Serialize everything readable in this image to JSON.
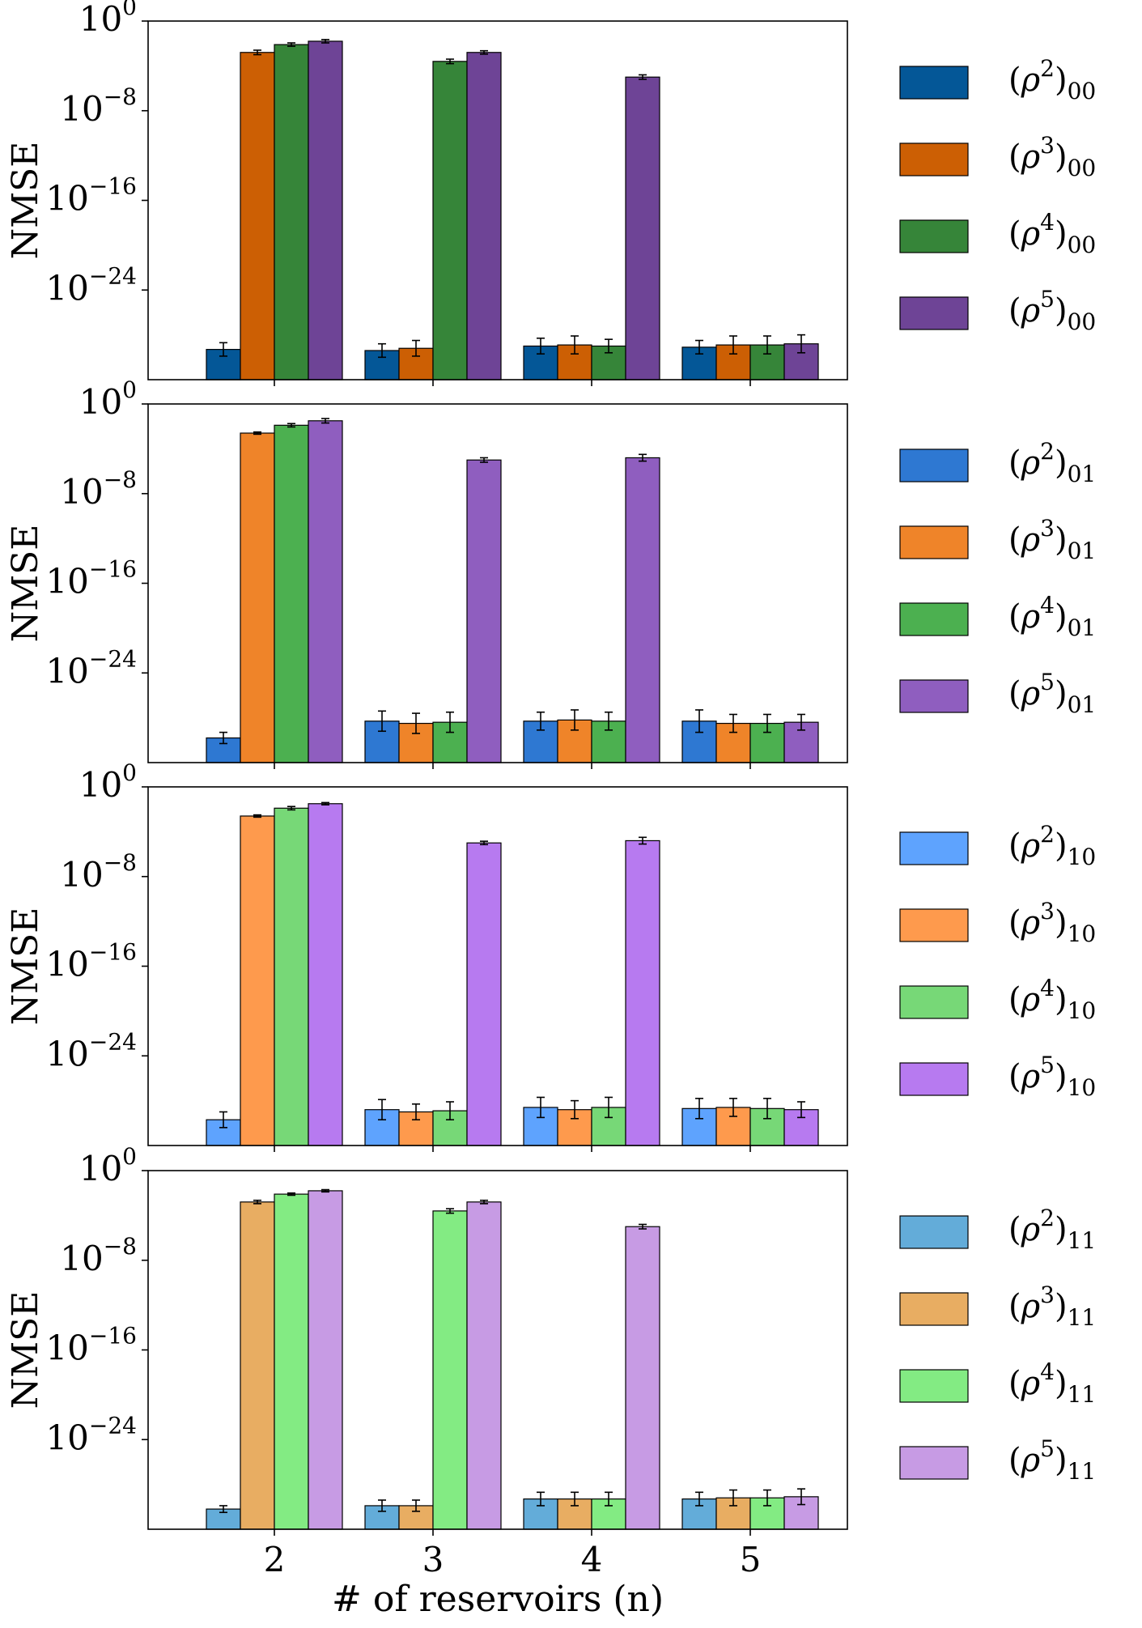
{
  "chart_data": {
    "type": "bar",
    "xlabel": "# of reservoirs (n)",
    "ylabel": "NMSE",
    "yscale": "log",
    "ylim_exponents": [
      -32,
      0
    ],
    "ytick_labels": [
      {
        "base": "10",
        "exp": "0",
        "value_exp": 0
      },
      {
        "base": "10",
        "exp": "−8",
        "value_exp": -8
      },
      {
        "base": "10",
        "exp": "−16",
        "value_exp": -16
      },
      {
        "base": "10",
        "exp": "−24",
        "value_exp": -24
      }
    ],
    "categories": [
      "2",
      "3",
      "4",
      "5"
    ],
    "panels": [
      {
        "name": "panel-00",
        "series": [
          {
            "name": "(ρ²)₀₀",
            "base": "ρ",
            "power": "2",
            "index": "00",
            "color": "#045797",
            "log10_values": [
              -29.3,
              -29.4,
              -29.0,
              -29.1
            ],
            "log10_err": [
              0.6,
              0.6,
              0.7,
              0.6
            ]
          },
          {
            "name": "(ρ³)₀₀",
            "base": "ρ",
            "power": "3",
            "index": "00",
            "color": "#cc5f04",
            "log10_values": [
              -2.8,
              -29.2,
              -28.9,
              -28.9
            ],
            "log10_err": [
              0.2,
              0.7,
              0.8,
              0.8
            ]
          },
          {
            "name": "(ρ⁴)₀₀",
            "base": "ρ",
            "power": "4",
            "index": "00",
            "color": "#368539",
            "log10_values": [
              -2.1,
              -3.6,
              -29.0,
              -28.9
            ],
            "log10_err": [
              0.15,
              0.2,
              0.6,
              0.8
            ]
          },
          {
            "name": "(ρ⁵)₀₀",
            "base": "ρ",
            "power": "5",
            "index": "00",
            "color": "#6e4496",
            "log10_values": [
              -1.8,
              -2.8,
              -5.0,
              -28.8
            ],
            "log10_err": [
              0.15,
              0.15,
              0.2,
              0.8
            ]
          }
        ]
      },
      {
        "name": "panel-01",
        "series": [
          {
            "name": "(ρ²)₀₁",
            "base": "ρ",
            "power": "2",
            "index": "01",
            "color": "#2e78d2",
            "log10_values": [
              -29.8,
              -28.3,
              -28.3,
              -28.3
            ],
            "log10_err": [
              0.5,
              0.9,
              0.8,
              1.0
            ]
          },
          {
            "name": "(ρ³)₀₁",
            "base": "ρ",
            "power": "3",
            "index": "01",
            "color": "#ef8429",
            "log10_values": [
              -2.6,
              -28.5,
              -28.2,
              -28.5
            ],
            "log10_err": [
              0.1,
              0.9,
              0.9,
              0.8
            ]
          },
          {
            "name": "(ρ⁴)₀₁",
            "base": "ρ",
            "power": "4",
            "index": "01",
            "color": "#4cb050",
            "log10_values": [
              -1.9,
              -28.4,
              -28.3,
              -28.5
            ],
            "log10_err": [
              0.15,
              0.9,
              0.8,
              0.8
            ]
          },
          {
            "name": "(ρ⁵)₀₁",
            "base": "ρ",
            "power": "5",
            "index": "01",
            "color": "#8f5ebf",
            "log10_values": [
              -1.5,
              -5.0,
              -4.8,
              -28.4
            ],
            "log10_err": [
              0.2,
              0.2,
              0.3,
              0.7
            ]
          }
        ]
      },
      {
        "name": "panel-10",
        "series": [
          {
            "name": "(ρ²)₁₀",
            "base": "ρ",
            "power": "2",
            "index": "10",
            "color": "#5ea3fe",
            "log10_values": [
              -29.7,
              -28.8,
              -28.6,
              -28.7
            ],
            "log10_err": [
              0.7,
              0.9,
              0.9,
              0.9
            ]
          },
          {
            "name": "(ρ³)₁₀",
            "base": "ρ",
            "power": "3",
            "index": "10",
            "color": "#fe9a4d",
            "log10_values": [
              -2.6,
              -29.0,
              -28.8,
              -28.6
            ],
            "log10_err": [
              0.1,
              0.7,
              0.8,
              0.8
            ]
          },
          {
            "name": "(ρ⁴)₁₀",
            "base": "ρ",
            "power": "4",
            "index": "10",
            "color": "#77d877",
            "log10_values": [
              -1.9,
              -28.9,
              -28.6,
              -28.7
            ],
            "log10_err": [
              0.15,
              0.8,
              0.9,
              0.9
            ]
          },
          {
            "name": "(ρ⁵)₁₀",
            "base": "ρ",
            "power": "5",
            "index": "10",
            "color": "#b77af0",
            "log10_values": [
              -1.5,
              -5.0,
              -4.8,
              -28.8
            ],
            "log10_err": [
              0.1,
              0.15,
              0.3,
              0.7
            ]
          }
        ]
      },
      {
        "name": "panel-11",
        "series": [
          {
            "name": "(ρ²)₁₁",
            "base": "ρ",
            "power": "2",
            "index": "11",
            "color": "#63acd9",
            "log10_values": [
              -30.2,
              -29.9,
              -29.3,
              -29.3
            ],
            "log10_err": [
              0.3,
              0.5,
              0.6,
              0.6
            ]
          },
          {
            "name": "(ρ³)₁₁",
            "base": "ρ",
            "power": "3",
            "index": "11",
            "color": "#e8ad62",
            "log10_values": [
              -2.8,
              -29.9,
              -29.3,
              -29.2
            ],
            "log10_err": [
              0.15,
              0.5,
              0.6,
              0.7
            ]
          },
          {
            "name": "(ρ⁴)₁₁",
            "base": "ρ",
            "power": "4",
            "index": "11",
            "color": "#83eb83",
            "log10_values": [
              -2.1,
              -3.6,
              -29.3,
              -29.2
            ],
            "log10_err": [
              0.1,
              0.2,
              0.6,
              0.7
            ]
          },
          {
            "name": "(ρ⁵)₁₁",
            "base": "ρ",
            "power": "5",
            "index": "11",
            "color": "#c79be4",
            "log10_values": [
              -1.8,
              -2.8,
              -5.0,
              -29.1
            ],
            "log10_err": [
              0.1,
              0.15,
              0.2,
              0.7
            ]
          }
        ]
      }
    ]
  }
}
